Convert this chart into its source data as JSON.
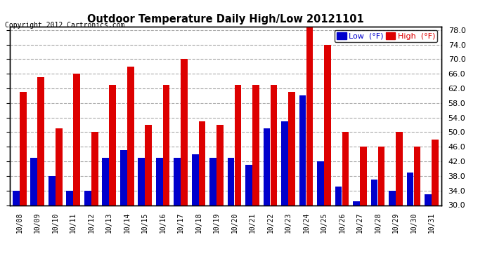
{
  "title": "Outdoor Temperature Daily High/Low 20121101",
  "copyright": "Copyright 2012 Cartronics.com",
  "legend_low": "Low  (°F)",
  "legend_high": "High  (°F)",
  "dates": [
    "10/08",
    "10/09",
    "10/10",
    "10/11",
    "10/12",
    "10/13",
    "10/14",
    "10/15",
    "10/16",
    "10/17",
    "10/18",
    "10/19",
    "10/20",
    "10/21",
    "10/22",
    "10/23",
    "10/24",
    "10/25",
    "10/26",
    "10/27",
    "10/28",
    "10/29",
    "10/30",
    "10/31"
  ],
  "lows": [
    34,
    43,
    38,
    34,
    34,
    43,
    45,
    43,
    43,
    43,
    44,
    43,
    43,
    41,
    51,
    53,
    60,
    42,
    35,
    31,
    37,
    34,
    39,
    33
  ],
  "highs": [
    61,
    65,
    51,
    66,
    50,
    63,
    68,
    52,
    63,
    70,
    53,
    52,
    63,
    63,
    63,
    61,
    79,
    74,
    50,
    46,
    46,
    50,
    46,
    48
  ],
  "low_color": "#0000cc",
  "high_color": "#dd0000",
  "bg_color": "#ffffff",
  "plot_bg_color": "#ffffff",
  "grid_color": "#aaaaaa",
  "ylim_min": 30.0,
  "ylim_max": 79.0,
  "yticks": [
    30.0,
    34.0,
    38.0,
    42.0,
    46.0,
    50.0,
    54.0,
    58.0,
    62.0,
    66.0,
    70.0,
    74.0,
    78.0
  ]
}
